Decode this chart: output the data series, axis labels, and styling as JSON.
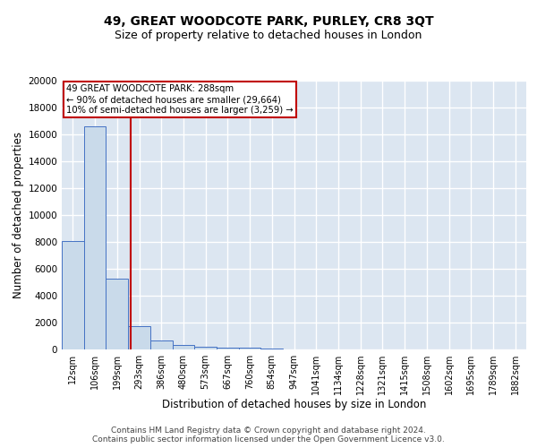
{
  "title": "49, GREAT WOODCOTE PARK, PURLEY, CR8 3QT",
  "subtitle": "Size of property relative to detached houses in London",
  "xlabel": "Distribution of detached houses by size in London",
  "ylabel": "Number of detached properties",
  "footer_line1": "Contains HM Land Registry data © Crown copyright and database right 2024.",
  "footer_line2": "Contains public sector information licensed under the Open Government Licence v3.0.",
  "annotation_line1": "49 GREAT WOODCOTE PARK: 288sqm",
  "annotation_line2": "← 90% of detached houses are smaller (29,664)",
  "annotation_line3": "10% of semi-detached houses are larger (3,259) →",
  "bar_labels": [
    "12sqm",
    "106sqm",
    "199sqm",
    "293sqm",
    "386sqm",
    "480sqm",
    "573sqm",
    "667sqm",
    "760sqm",
    "854sqm",
    "947sqm",
    "1041sqm",
    "1134sqm",
    "1228sqm",
    "1321sqm",
    "1415sqm",
    "1508sqm",
    "1602sqm",
    "1695sqm",
    "1789sqm",
    "1882sqm"
  ],
  "bar_heights": [
    8050,
    16600,
    5300,
    1720,
    700,
    360,
    210,
    155,
    145,
    100,
    0,
    0,
    0,
    0,
    0,
    0,
    0,
    0,
    0,
    0,
    0
  ],
  "bar_color": "#c9daea",
  "bar_edge_color": "#4472c4",
  "vline_x": 2.62,
  "vline_color": "#c00000",
  "ylim": [
    0,
    20000
  ],
  "yticks": [
    0,
    2000,
    4000,
    6000,
    8000,
    10000,
    12000,
    14000,
    16000,
    18000,
    20000
  ],
  "background_color": "#dce6f1",
  "grid_color": "#ffffff",
  "annotation_box_color": "#c00000",
  "title_fontsize": 10,
  "subtitle_fontsize": 9,
  "axis_label_fontsize": 8.5,
  "tick_fontsize": 7.5,
  "footer_fontsize": 6.5
}
